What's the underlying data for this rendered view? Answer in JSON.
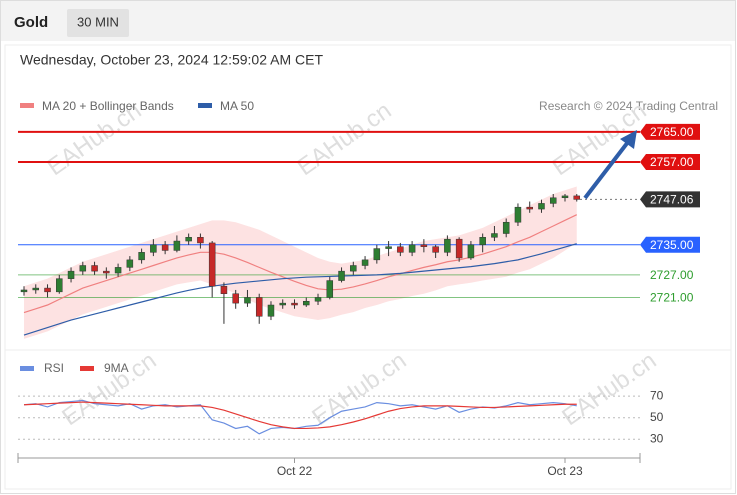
{
  "header": {
    "symbol": "Gold",
    "timeframe": "30 MIN"
  },
  "copyright": "Research © 2024 Trading Central",
  "watermark": "EAHub.cn",
  "chart_data": [
    {
      "type": "candlestick",
      "title": "Wednesday, October 23, 2024 12:59:02 AM CET",
      "categories": [
        null,
        null,
        null,
        null,
        null,
        null,
        null,
        null,
        null,
        null,
        null,
        null,
        null,
        null,
        null,
        null,
        null,
        null,
        null,
        null,
        null,
        null,
        null,
        "Oct 22",
        null,
        null,
        null,
        null,
        null,
        null,
        null,
        null,
        null,
        null,
        null,
        null,
        null,
        null,
        null,
        null,
        null,
        null,
        null,
        null,
        null,
        null,
        "Oct 23",
        null
      ],
      "open": [
        2722.5,
        2723,
        2723.5,
        2722.5,
        2726,
        2728,
        2729.5,
        2728,
        2727.5,
        2729,
        2731,
        2733,
        2735,
        2733.5,
        2736,
        2737,
        2735.5,
        2724,
        2722,
        2719.5,
        2721,
        2716,
        2719,
        2719.5,
        2719,
        2720,
        2721,
        2725.5,
        2728,
        2729.5,
        2731,
        2734,
        2734.5,
        2733,
        2735,
        2734.5,
        2733,
        2736.5,
        2731.5,
        2735,
        2737,
        2738,
        2741,
        2745,
        2744.5,
        2746,
        2747.5,
        2748
      ],
      "high": [
        2724,
        2724.5,
        2724.5,
        2727,
        2729,
        2730.5,
        2730.5,
        2729,
        2730,
        2732,
        2734,
        2736.5,
        2736,
        2737.5,
        2738,
        2738,
        2736,
        2725,
        2723,
        2723,
        2722,
        2720,
        2720.5,
        2720.5,
        2721,
        2722,
        2726.5,
        2729,
        2730.5,
        2732,
        2735,
        2736,
        2735.5,
        2736,
        2736.5,
        2735,
        2737.5,
        2737,
        2736,
        2738,
        2740,
        2742,
        2746,
        2746.5,
        2747,
        2748.5,
        2748.5,
        2748.5
      ],
      "low": [
        2721.5,
        2722,
        2721,
        2722,
        2725,
        2727,
        2727,
        2726,
        2726.5,
        2728,
        2730,
        2732,
        2732.5,
        2733,
        2735,
        2734,
        2721,
        2714,
        2718,
        2718.5,
        2714,
        2715,
        2718,
        2718,
        2718.5,
        2719,
        2720.5,
        2725,
        2727,
        2728.5,
        2730,
        2732,
        2732,
        2732,
        2733,
        2731.5,
        2732,
        2730.5,
        2731,
        2733,
        2736,
        2737,
        2740,
        2743.5,
        2743.5,
        2745,
        2746.5,
        2746.5
      ],
      "close": [
        2723,
        2723.5,
        2722.5,
        2726,
        2728,
        2729.5,
        2728,
        2727.5,
        2729,
        2731,
        2733,
        2735,
        2733.5,
        2736,
        2737,
        2735.5,
        2724,
        2722,
        2719.5,
        2721,
        2716,
        2719,
        2719.5,
        2719,
        2720,
        2721,
        2725.5,
        2728,
        2729.5,
        2731,
        2734,
        2734.5,
        2733,
        2735,
        2734.5,
        2733,
        2736.5,
        2731.5,
        2735,
        2737,
        2738,
        2741,
        2745,
        2744.5,
        2746,
        2747.5,
        2748,
        2747.06
      ],
      "up_color": "#2e7d32",
      "down_color": "#c62828",
      "series": [
        {
          "name": "MA 20 + Bollinger Bands",
          "color": "#f08080",
          "values": [
            2717,
            2718,
            2719,
            2720.5,
            2722,
            2723.5,
            2724.5,
            2725.5,
            2726.5,
            2727.5,
            2728.5,
            2729.5,
            2730.5,
            2731.5,
            2732.3,
            2733,
            2733,
            2732.5,
            2731.5,
            2730.3,
            2729,
            2727.7,
            2726.5,
            2725.3,
            2724.2,
            2723.3,
            2723,
            2723.2,
            2723.8,
            2724.6,
            2725.5,
            2726.5,
            2727.3,
            2728.2,
            2729,
            2729.7,
            2730.5,
            2731,
            2731.7,
            2732.5,
            2733.5,
            2734.5,
            2735.8,
            2737,
            2738.5,
            2740,
            2741.5,
            2743
          ]
        },
        {
          "name": "MA 50",
          "color": "#2e5da8",
          "values": [
            2711,
            2712,
            2713,
            2714,
            2715,
            2715.8,
            2716.6,
            2717.4,
            2718.2,
            2719,
            2719.8,
            2720.6,
            2721.4,
            2722.2,
            2722.9,
            2723.5,
            2724,
            2724.4,
            2724.8,
            2725.1,
            2725.4,
            2725.7,
            2726,
            2726.2,
            2726.4,
            2726.5,
            2726.6,
            2726.7,
            2726.8,
            2726.9,
            2727,
            2727.2,
            2727.4,
            2727.7,
            2728,
            2728.3,
            2728.6,
            2728.9,
            2729.2,
            2729.6,
            2730,
            2730.5,
            2731,
            2731.8,
            2732.6,
            2733.5,
            2734.4,
            2735.3
          ]
        }
      ],
      "bands": {
        "color": "#fde2e2",
        "upper": [
          2724,
          2725,
          2726,
          2727.5,
          2729,
          2730.5,
          2731.5,
          2732.5,
          2733.5,
          2734.5,
          2735.5,
          2736.5,
          2737.5,
          2738.5,
          2739.5,
          2740.5,
          2741.5,
          2741.5,
          2741,
          2740,
          2739,
          2737.5,
          2736,
          2734.5,
          2733,
          2731.5,
          2730.5,
          2730,
          2730.5,
          2731,
          2732,
          2733,
          2734,
          2735,
          2736,
          2736.5,
          2737,
          2737.5,
          2738.5,
          2739.5,
          2741,
          2742.5,
          2744,
          2745.5,
          2747,
          2748.5,
          2749.5,
          2750.5
        ],
        "lower": [
          2710,
          2711,
          2712,
          2713.5,
          2715,
          2716.5,
          2717.5,
          2718.5,
          2719.5,
          2720.5,
          2721.5,
          2722.5,
          2723.5,
          2724.5,
          2725,
          2725.5,
          2724.5,
          2723.5,
          2722,
          2720.5,
          2719,
          2718,
          2717,
          2716,
          2715.5,
          2715,
          2715.5,
          2716.4,
          2717.1,
          2718.2,
          2719,
          2720,
          2720.6,
          2721.4,
          2722,
          2722.9,
          2724,
          2724.5,
          2724.9,
          2725.5,
          2726,
          2726.5,
          2727.6,
          2728.5,
          2730,
          2731.5,
          2733.5,
          2735.5
        ]
      },
      "levels": [
        {
          "value": 2765,
          "label": "2765.00",
          "color": "#e01010"
        },
        {
          "value": 2757,
          "label": "2757.00",
          "color": "#e01010"
        },
        {
          "value": 2747.06,
          "label": "2747.06",
          "color": "#333333"
        },
        {
          "value": 2735,
          "label": "2735.00",
          "color": "#2962ff"
        },
        {
          "value": 2727,
          "label": "2727.00",
          "color": "#2e9d2e"
        },
        {
          "value": 2721,
          "label": "2721.00",
          "color": "#2e9d2e"
        }
      ],
      "ylim": [
        2709.7,
        2769.5
      ]
    },
    {
      "type": "line",
      "series": [
        {
          "name": "RSI",
          "color": "#6a8ee0",
          "values": [
            62,
            63,
            60,
            64,
            65,
            66,
            63,
            62,
            61,
            63,
            58,
            61,
            62,
            60,
            61,
            62,
            48,
            45,
            40,
            42,
            35,
            40,
            41,
            40,
            42,
            43,
            50,
            56,
            58,
            60,
            64,
            63,
            61,
            62,
            60,
            58,
            61,
            55,
            58,
            60,
            59,
            61,
            64,
            62,
            63,
            64,
            63,
            61
          ]
        },
        {
          "name": "9MA",
          "color": "#e53935",
          "values": [
            62,
            62.5,
            63,
            63.5,
            64,
            64.5,
            64,
            63.5,
            63,
            62.5,
            62,
            61.5,
            61,
            61,
            61,
            61,
            59.5,
            57,
            53.5,
            50,
            46.5,
            43.5,
            41.5,
            40,
            40,
            40.5,
            41.5,
            43.5,
            46,
            49,
            52.5,
            56,
            58.5,
            60,
            61,
            61,
            61,
            60.5,
            60,
            59.5,
            59.5,
            60,
            60.5,
            61,
            61.5,
            62,
            62.5,
            62.5
          ]
        }
      ],
      "ylim": [
        20,
        85
      ],
      "yticks": [
        70,
        50,
        30
      ]
    }
  ]
}
